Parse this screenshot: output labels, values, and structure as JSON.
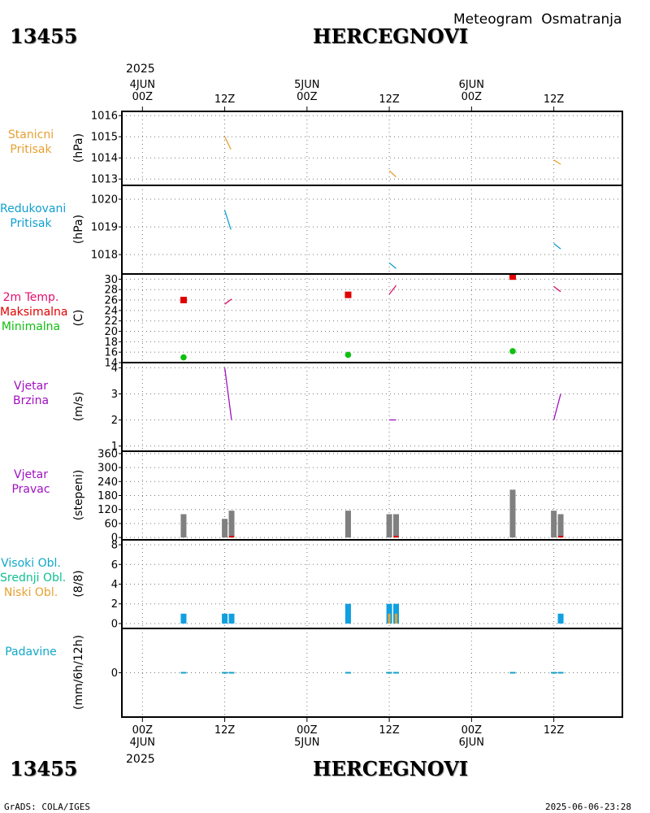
{
  "header": {
    "station_id": "13455",
    "station_name": "HERCEGNOVI",
    "subtitle": "Meteogram  Osmatranja",
    "year": "2025"
  },
  "footer": {
    "station_id": "13455",
    "station_name": "HERCEGNOVI",
    "year": "2025",
    "credit": "GrADS: COLA/IGES",
    "timestamp": "2025-06-06-23:28"
  },
  "time_axis": {
    "ticks": [
      {
        "hour": 0,
        "top": "4JUN\n00Z",
        "bottom": "00Z\n4JUN"
      },
      {
        "hour": 12,
        "top": "12Z",
        "bottom": "12Z"
      },
      {
        "hour": 24,
        "top": "5JUN\n00Z",
        "bottom": "00Z\n5JUN"
      },
      {
        "hour": 36,
        "top": "12Z",
        "bottom": "12Z"
      },
      {
        "hour": 48,
        "top": "6JUN\n00Z",
        "bottom": "00Z\n6JUN"
      },
      {
        "hour": 60,
        "top": "12Z",
        "bottom": "12Z"
      }
    ],
    "range_hours": [
      -3,
      70
    ]
  },
  "panels": [
    {
      "id": "stanicni",
      "labels": [
        "Stanicni",
        "Pritisak"
      ],
      "label_colors": [
        "#e8a030",
        "#e8a030"
      ],
      "unit": "(hPa)"
    },
    {
      "id": "redukovani",
      "labels": [
        "Redukovani",
        "Pritisak"
      ],
      "label_colors": [
        "#10a0d0",
        "#10a0d0"
      ],
      "unit": "(hPa)"
    },
    {
      "id": "temp",
      "labels": [
        "2m Temp.",
        "Maksimalna",
        "Minimalna"
      ],
      "label_colors": [
        "#e0106a",
        "#e00000",
        "#10c010"
      ],
      "unit": "(C)"
    },
    {
      "id": "brzina",
      "labels": [
        "Vjetar",
        "Brzina"
      ],
      "label_colors": [
        "#a010c0",
        "#a010c0"
      ],
      "unit": "(m/s)"
    },
    {
      "id": "pravac",
      "labels": [
        "Vjetar",
        "Pravac"
      ],
      "label_colors": [
        "#a010c0",
        "#a010c0"
      ],
      "unit": "(stepeni)"
    },
    {
      "id": "oblaci",
      "labels": [
        "Visoki Obl.",
        "Srednji Obl.",
        "Niski Obl."
      ],
      "label_colors": [
        "#10a8c8",
        "#10c090",
        "#e8a030"
      ],
      "unit": "(8/8)"
    },
    {
      "id": "padavine",
      "labels": [
        "Padavine"
      ],
      "label_colors": [
        "#10a8c8"
      ],
      "unit": "(mm/6h/12h)"
    }
  ],
  "chart_data": [
    {
      "id": "stanicni",
      "type": "line",
      "title": "Stanicni Pritisak",
      "ylabel": "(hPa)",
      "ylim": [
        1012.7,
        1016.2
      ],
      "yticks": [
        1013,
        1014,
        1015,
        1016
      ],
      "grid": true,
      "color": "#e8a030",
      "series": [
        {
          "name": "Stanicni Pritisak",
          "segments": [
            [
              [
                12,
                1015.0
              ],
              [
                12.9,
                1014.4
              ]
            ],
            [
              [
                36,
                1013.4
              ],
              [
                37,
                1013.1
              ]
            ],
            [
              [
                60,
                1013.9
              ],
              [
                61,
                1013.7
              ]
            ]
          ]
        }
      ]
    },
    {
      "id": "redukovani",
      "type": "line",
      "title": "Redukovani Pritisak",
      "ylabel": "(hPa)",
      "ylim": [
        1017.3,
        1020.5
      ],
      "yticks": [
        1018,
        1019,
        1020
      ],
      "grid": true,
      "color": "#10a0d0",
      "series": [
        {
          "name": "Redukovani Pritisak",
          "segments": [
            [
              [
                12,
                1019.6
              ],
              [
                12.9,
                1018.9
              ]
            ],
            [
              [
                36,
                1017.7
              ],
              [
                37,
                1017.5
              ]
            ],
            [
              [
                60,
                1018.4
              ],
              [
                61,
                1018.2
              ]
            ]
          ]
        }
      ]
    },
    {
      "id": "temp",
      "type": "line",
      "title": "2m Temp.",
      "ylabel": "(C)",
      "ylim": [
        14,
        31
      ],
      "yticks": [
        14,
        16,
        18,
        20,
        22,
        24,
        26,
        28,
        30
      ],
      "grid": true,
      "series": [
        {
          "name": "2m Temp.",
          "color": "#e0106a",
          "segments": [
            [
              [
                12,
                25.2
              ],
              [
                13,
                26.2
              ]
            ],
            [
              [
                36,
                27.1
              ],
              [
                37,
                28.8
              ]
            ],
            [
              [
                60,
                28.6
              ],
              [
                61,
                27.6
              ]
            ]
          ]
        }
      ],
      "max_points": {
        "name": "Maksimalna",
        "color": "#e00000",
        "points": [
          [
            6,
            26
          ],
          [
            30,
            27
          ],
          [
            54,
            30.5
          ]
        ]
      },
      "min_points": {
        "name": "Minimalna",
        "color": "#10c010",
        "points": [
          [
            6,
            15
          ],
          [
            30,
            15.5
          ],
          [
            54,
            16.2
          ]
        ]
      }
    },
    {
      "id": "brzina",
      "type": "line",
      "title": "Vjetar Brzina",
      "ylabel": "(m/s)",
      "ylim": [
        0.8,
        4.2
      ],
      "yticks": [
        1,
        2,
        3,
        4
      ],
      "grid": true,
      "color": "#a010c0",
      "series": [
        {
          "name": "Vjetar Brzina",
          "segments": [
            [
              [
                12,
                4
              ],
              [
                13,
                2
              ]
            ],
            [
              [
                36,
                2
              ],
              [
                37,
                2
              ]
            ],
            [
              [
                60,
                2
              ],
              [
                61,
                3
              ]
            ]
          ]
        }
      ]
    },
    {
      "id": "pravac",
      "type": "bar",
      "title": "Vjetar Pravac",
      "ylabel": "(stepeni)",
      "ylim": [
        -10,
        370
      ],
      "yticks": [
        0,
        60,
        120,
        180,
        240,
        300,
        360
      ],
      "grid": true,
      "color": "#808080",
      "x": [
        6,
        12,
        13,
        30,
        36,
        37,
        54,
        60,
        61
      ],
      "values": [
        100,
        80,
        115,
        115,
        100,
        100,
        205,
        115,
        100
      ],
      "calm_marks": {
        "color": "#e00000",
        "x": [
          13,
          37,
          61
        ]
      }
    },
    {
      "id": "oblaci",
      "type": "bar",
      "title": "Oblaci",
      "ylabel": "(8/8)",
      "ylim": [
        -0.5,
        8.5
      ],
      "yticks": [
        0,
        2,
        4,
        6,
        8
      ],
      "grid": true,
      "x": [
        6,
        12,
        13,
        30,
        36,
        37,
        54,
        60,
        61
      ],
      "series": [
        {
          "name": "Visoki Obl.",
          "color": "#10a0e0",
          "values": [
            1,
            1,
            1,
            2,
            2,
            2,
            0,
            0,
            1
          ]
        },
        {
          "name": "Srednji Obl.",
          "color": "#10c090",
          "values": [
            0,
            0,
            0,
            0,
            0,
            0,
            0,
            0,
            0
          ]
        },
        {
          "name": "Niski Obl.",
          "color": "#e8a030",
          "values": [
            0,
            0,
            0,
            0,
            1,
            1,
            0,
            0,
            0
          ]
        }
      ]
    },
    {
      "id": "padavine",
      "type": "bar",
      "title": "Padavine",
      "ylabel": "(mm/6h/12h)",
      "ylim": [
        -5,
        5
      ],
      "yticks": [
        0
      ],
      "grid": true,
      "color": "#10a0c8",
      "x": [
        6,
        12,
        13,
        30,
        36,
        37,
        54,
        60,
        61
      ],
      "values": [
        0,
        0,
        0,
        0,
        0,
        0,
        0,
        0,
        0
      ]
    }
  ]
}
